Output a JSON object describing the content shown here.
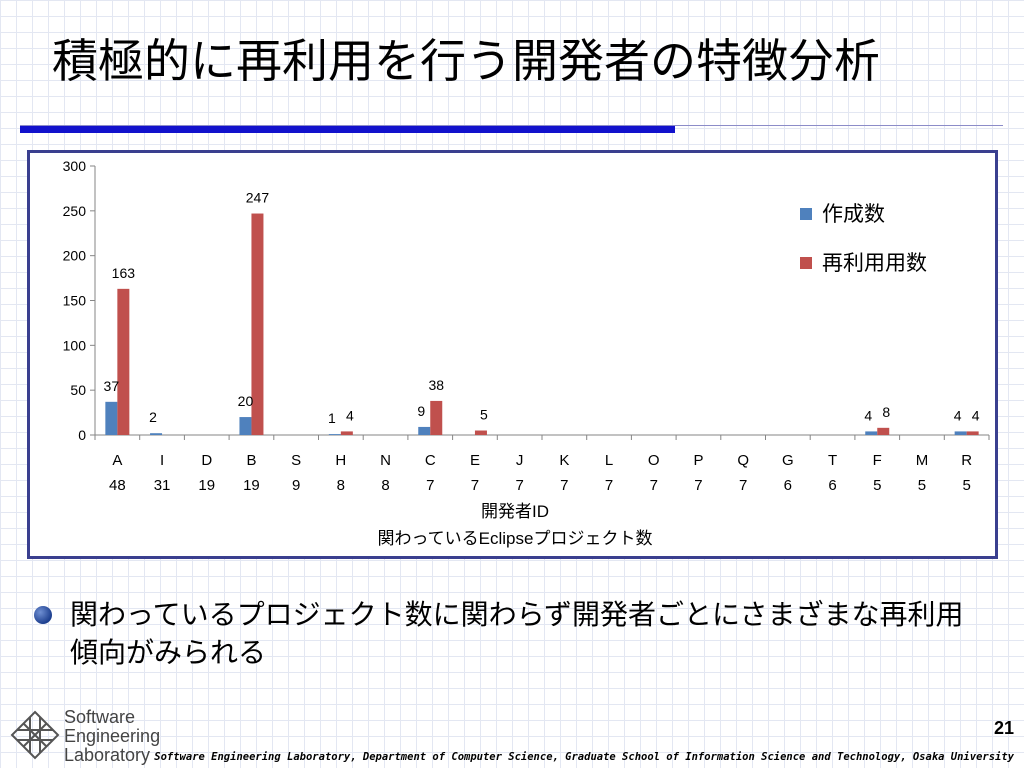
{
  "slide": {
    "title": "積極的に再利用を行う開発者の特徴分析",
    "bullet": "関わっているプロジェクト数に関わらず開発者ごとにさまざまな再利用傾向がみられる",
    "logo_text": "Software\nEngineering\nLaboratory",
    "page_number": "21",
    "footer": "Software Engineering Laboratory, Department of Computer Science, Graduate School of Information Science and Technology, Osaka University",
    "colors": {
      "title_rule": "#1212cc",
      "chart_border": "#3a3f8f",
      "bullet": "#1d3f8f"
    }
  },
  "chart_data": {
    "type": "bar",
    "categories": [
      "A",
      "I",
      "D",
      "B",
      "S",
      "H",
      "N",
      "C",
      "E",
      "J",
      "K",
      "L",
      "O",
      "P",
      "Q",
      "G",
      "T",
      "F",
      "M",
      "R"
    ],
    "category_sublabels": [
      "48",
      "31",
      "19",
      "19",
      "9",
      "8",
      "8",
      "7",
      "7",
      "7",
      "7",
      "7",
      "7",
      "7",
      "7",
      "6",
      "6",
      "5",
      "5",
      "5"
    ],
    "series": [
      {
        "name": "作成数",
        "color": "#4f81bd",
        "values": [
          37,
          2,
          0,
          20,
          0,
          1,
          0,
          9,
          0,
          0,
          0,
          0,
          0,
          0,
          0,
          0,
          0,
          4,
          0,
          4
        ]
      },
      {
        "name": "再利用用数",
        "color": "#c0504d",
        "values": [
          163,
          0,
          0,
          247,
          0,
          4,
          0,
          38,
          5,
          0,
          0,
          0,
          0,
          0,
          0,
          0,
          0,
          8,
          0,
          4
        ]
      }
    ],
    "data_labels": [
      {
        "series": 0,
        "category": "A",
        "text": "37"
      },
      {
        "series": 0,
        "category": "I",
        "text": "2"
      },
      {
        "series": 0,
        "category": "B",
        "text": "20"
      },
      {
        "series": 0,
        "category": "H",
        "text": "1"
      },
      {
        "series": 0,
        "category": "C",
        "text": "9"
      },
      {
        "series": 0,
        "category": "F",
        "text": "4"
      },
      {
        "series": 0,
        "category": "R",
        "text": "4"
      },
      {
        "series": 1,
        "category": "A",
        "text": "163"
      },
      {
        "series": 1,
        "category": "B",
        "text": "247"
      },
      {
        "series": 1,
        "category": "H",
        "text": "4"
      },
      {
        "series": 1,
        "category": "C",
        "text": "38"
      },
      {
        "series": 1,
        "category": "E",
        "text": "5"
      },
      {
        "series": 1,
        "category": "F",
        "text": "8"
      },
      {
        "series": 1,
        "category": "R",
        "text": "4"
      }
    ],
    "yticks": [
      0,
      50,
      100,
      150,
      200,
      250,
      300
    ],
    "ylim": [
      0,
      300
    ],
    "xlabel_lines": [
      "開発者ID",
      "関わっているEclipseプロジェクト数"
    ],
    "legend_position": "right",
    "grid": false
  }
}
